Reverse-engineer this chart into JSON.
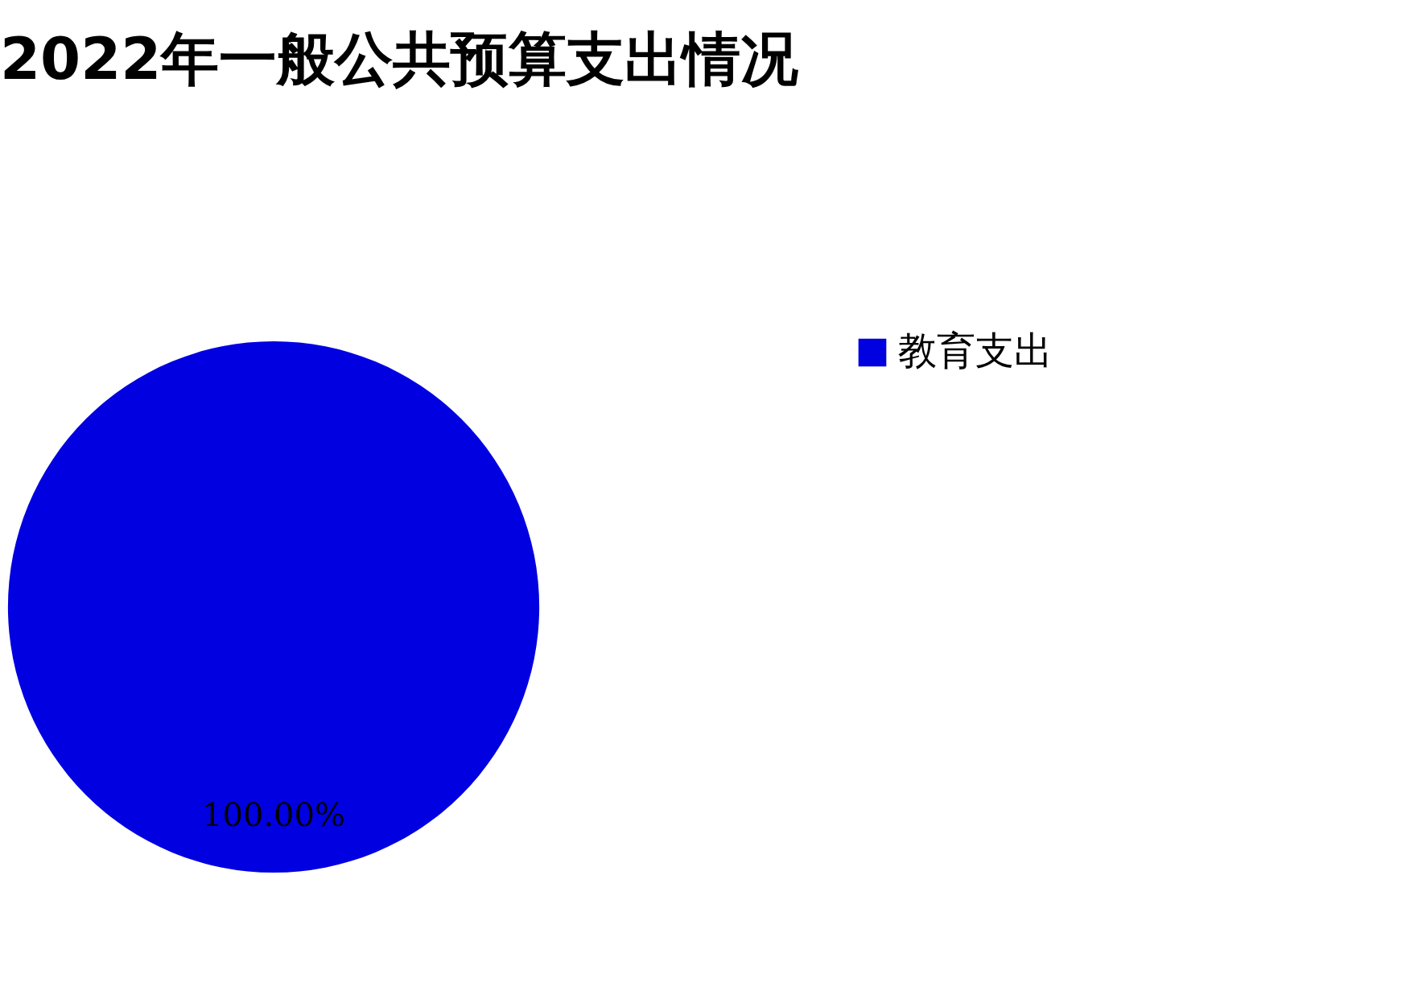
{
  "chart_data": {
    "type": "pie",
    "title": "2022年一般公共预算支出情况",
    "categories": [
      "教育支出"
    ],
    "values": [
      100
    ],
    "colors": [
      "#0000e0"
    ],
    "value_labels": [
      "100.00%"
    ],
    "legend": "right"
  }
}
